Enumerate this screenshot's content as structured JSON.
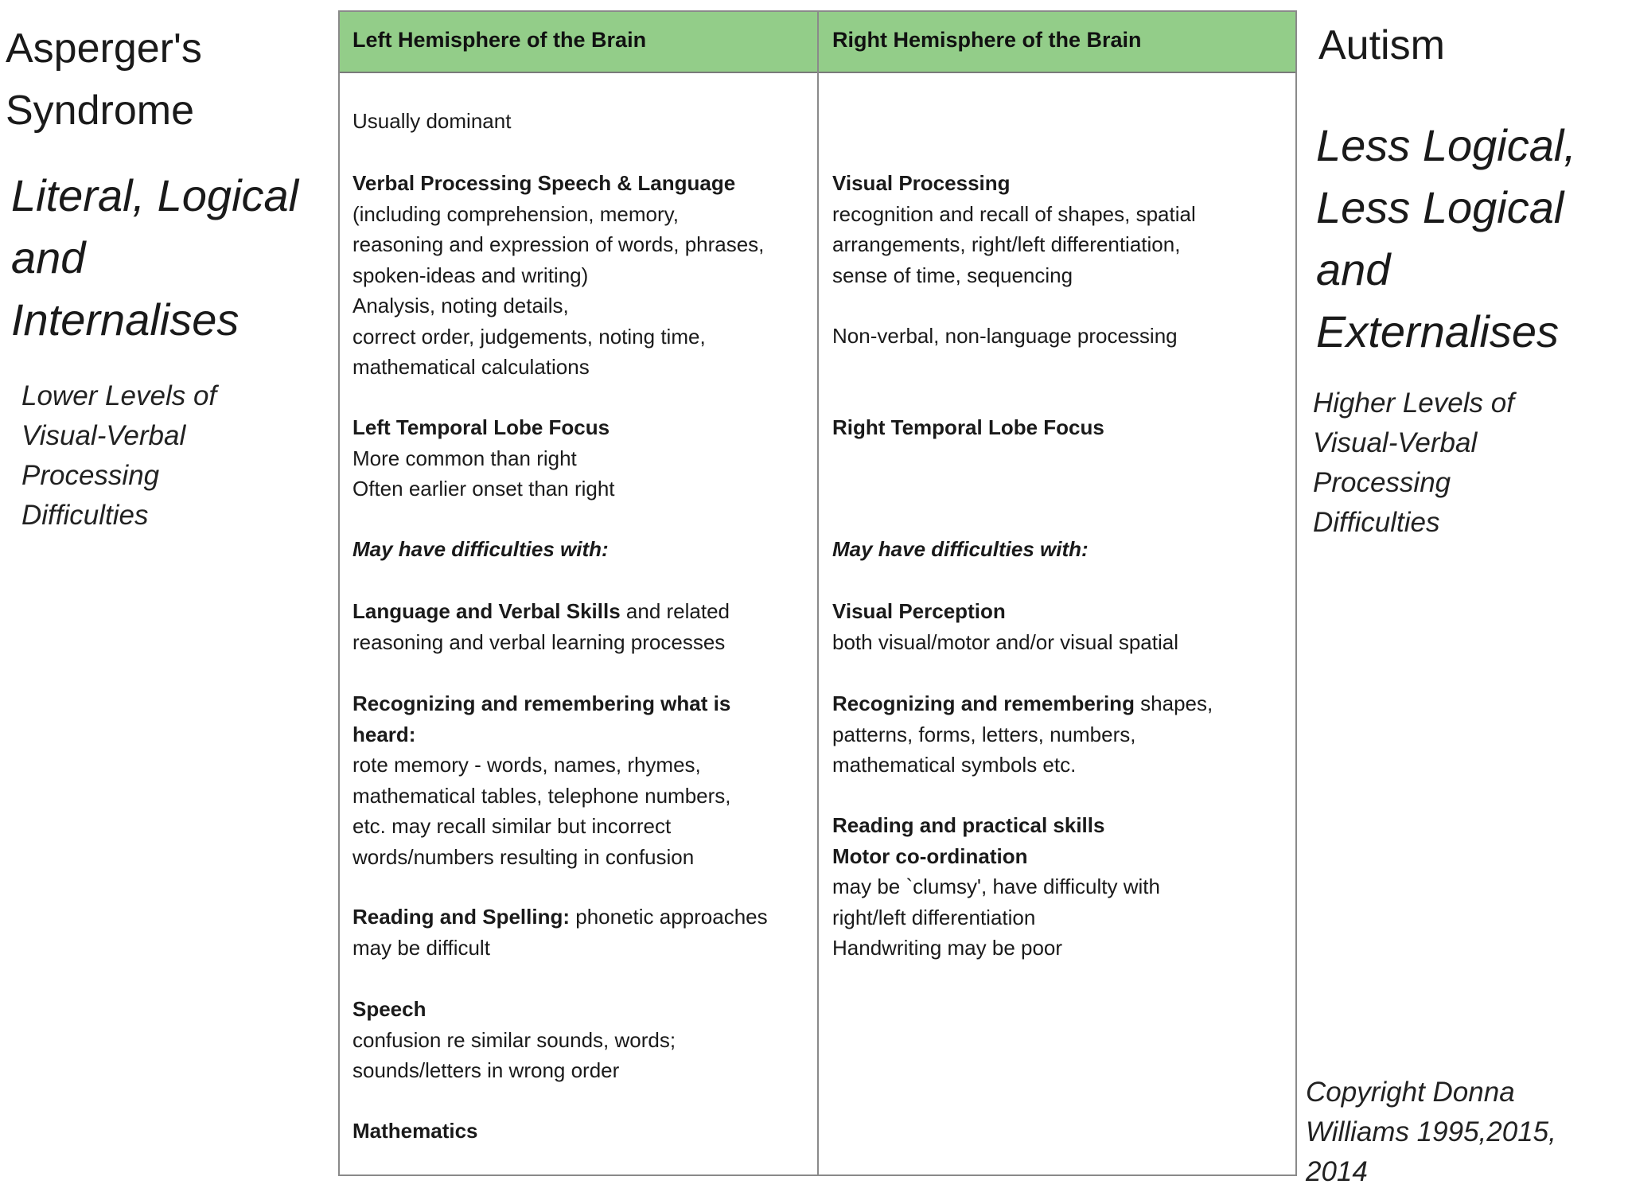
{
  "left_side": {
    "title": [
      "Asperger's",
      "Syndrome"
    ],
    "subtitle": [
      "Literal, Logical",
      "and",
      "Internalises"
    ],
    "note": [
      "Lower Levels of",
      "Visual-Verbal",
      "Processing",
      "Difficulties"
    ]
  },
  "right_side": {
    "title": "Autism",
    "subtitle": [
      "Less Logical,",
      "Less Logical",
      "and",
      "Externalises"
    ],
    "note": [
      "Higher Levels of",
      "Visual-Verbal",
      "Processing",
      "Difficulties"
    ],
    "copyright": [
      "Copyright Donna",
      "Williams 1995,2015,",
      "2014"
    ]
  },
  "table": {
    "header_color": "#93cd89",
    "headers": [
      "Left Hemisphere of the Brain",
      "Right Hemisphere of the Brain"
    ],
    "left": {
      "dominant": "Usually dominant",
      "verbal_title": "Verbal Processing Speech & Language",
      "verbal_lines": [
        "(including comprehension, memory,",
        "reasoning and expression of words, phrases,",
        "spoken-ideas and writing)",
        "Analysis, noting details,",
        "correct order, judgements, noting time,",
        "mathematical calculations"
      ],
      "temporal_title": "Left Temporal Lobe Focus",
      "temporal_lines": [
        "More common than right",
        "Often earlier onset than right"
      ],
      "difficulties": "May have difficulties with:",
      "language_bold": "Language and Verbal Skills",
      "language_rest": " and related",
      "language_line2": "reasoning and verbal learning processes",
      "recog_title": [
        "Recognizing and remembering what is",
        "heard:"
      ],
      "recog_lines": [
        "rote memory - words, names, rhymes,",
        "mathematical tables, telephone numbers,",
        "etc. may recall similar but incorrect",
        "words/numbers resulting in confusion"
      ],
      "reading_bold": "Reading and Spelling:",
      "reading_rest": " phonetic approaches",
      "reading_line2": "may be difficult",
      "speech_title": "Speech",
      "speech_lines": [
        "confusion re similar sounds, words;",
        "sounds/letters in wrong order"
      ],
      "math_title": "Mathematics"
    },
    "right": {
      "visual_title": "Visual Processing",
      "visual_lines": [
        "recognition and recall of shapes, spatial",
        "arrangements, right/left differentiation,",
        "sense of time, sequencing"
      ],
      "nonverbal": "Non-verbal, non-language processing",
      "temporal_title": "Right Temporal Lobe Focus",
      "difficulties": "May have difficulties with:",
      "perception_title": "Visual Perception",
      "perception_line": "both visual/motor and/or visual spatial",
      "recog_bold": "Recognizing and remembering",
      "recog_rest": " shapes,",
      "recog_lines": [
        "patterns, forms, letters, numbers,",
        "mathematical symbols etc."
      ],
      "practical_title": "Reading and practical skills",
      "motor_title": "Motor co-ordination",
      "motor_lines": [
        "may be `clumsy', have difficulty with",
        "right/left differentiation",
        "Handwriting may be poor"
      ]
    }
  }
}
